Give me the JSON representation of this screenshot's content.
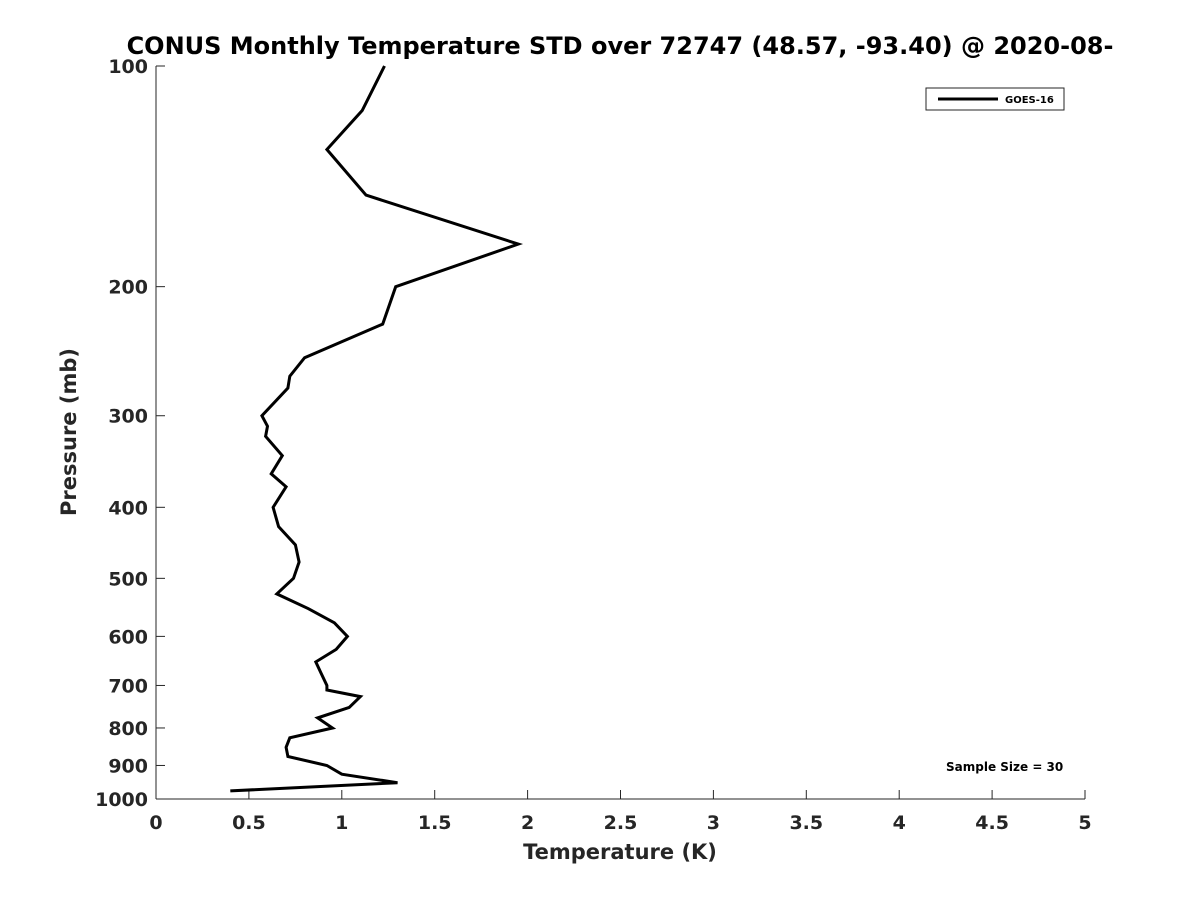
{
  "chart_data": {
    "type": "line",
    "title": "CONUS Monthly Temperature STD over 72747 (48.57, -93.40) @ 2020-08-",
    "xlabel": "Temperature (K)",
    "ylabel": "Pressure (mb)",
    "xlim": [
      0,
      5
    ],
    "ylim": [
      100,
      1000
    ],
    "y_scale": "log",
    "y_reversed": true,
    "x_ticks": [
      "0",
      "0.5",
      "1",
      "1.5",
      "2",
      "2.5",
      "3",
      "3.5",
      "4",
      "4.5",
      "5"
    ],
    "x_tick_values": [
      0,
      0.5,
      1,
      1.5,
      2,
      2.5,
      3,
      3.5,
      4,
      4.5,
      5
    ],
    "y_ticks": [
      "100",
      "200",
      "300",
      "400",
      "500",
      "600",
      "700",
      "800",
      "900",
      "1000"
    ],
    "y_tick_values": [
      100,
      200,
      300,
      400,
      500,
      600,
      700,
      800,
      900,
      1000
    ],
    "grid": false,
    "legend_position": "top-right",
    "series": [
      {
        "name": "GOES-16",
        "color": "#000000",
        "x": [
          1.23,
          1.11,
          0.92,
          1.13,
          1.95,
          1.29,
          1.22,
          0.8,
          0.72,
          0.71,
          0.57,
          0.6,
          0.59,
          0.68,
          0.62,
          0.7,
          0.63,
          0.66,
          0.75,
          0.77,
          0.74,
          0.65,
          0.82,
          0.96,
          1.03,
          0.97,
          0.86,
          0.89,
          0.92,
          0.92,
          1.1,
          1.04,
          0.87,
          0.95,
          0.72,
          0.7,
          0.71,
          0.92,
          1.0,
          1.3,
          0.4
        ],
        "y": [
          100,
          115,
          130,
          150,
          175,
          200,
          225,
          250,
          265,
          275,
          300,
          310,
          320,
          340,
          360,
          375,
          400,
          425,
          450,
          475,
          500,
          525,
          550,
          575,
          600,
          625,
          650,
          675,
          700,
          710,
          725,
          750,
          775,
          800,
          825,
          850,
          875,
          900,
          925,
          950,
          975
        ]
      }
    ],
    "annotation": "Sample Size = 30"
  }
}
